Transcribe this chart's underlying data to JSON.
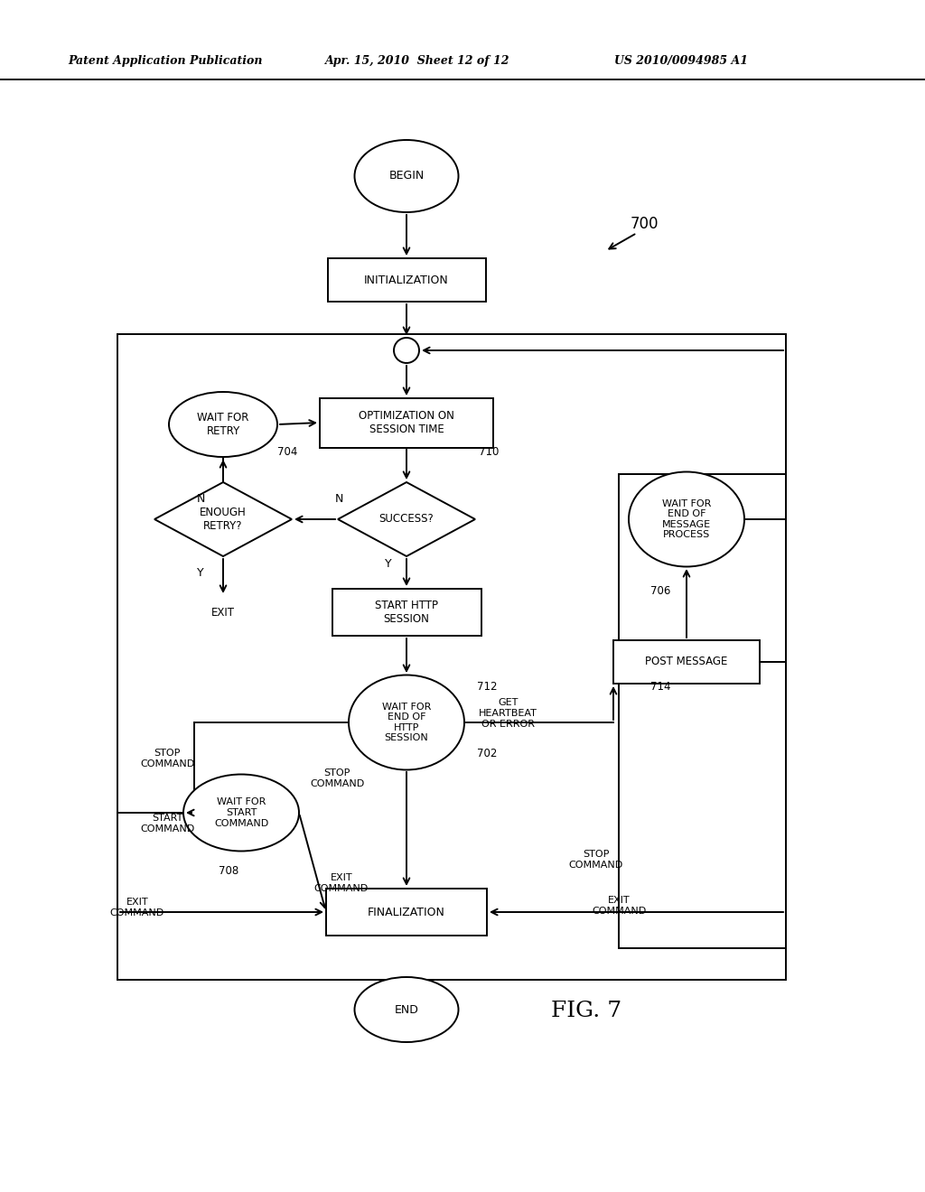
{
  "title_left": "Patent Application Publication",
  "title_mid": "Apr. 15, 2010  Sheet 12 of 12",
  "title_right": "US 2010/0094985 A1",
  "fig_label": "FIG. 7",
  "diagram_label": "700",
  "background": "#ffffff"
}
